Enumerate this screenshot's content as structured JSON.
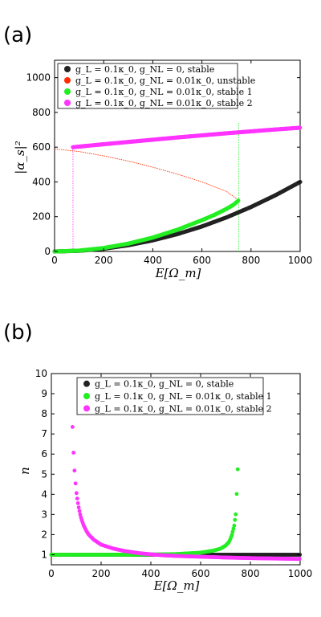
{
  "chart_data": [
    {
      "panel_label": "(a)",
      "type": "scatter",
      "xlabel": "E[Ω_m]",
      "ylabel": "|α_s|²",
      "xlim": [
        0,
        1000
      ],
      "ylim": [
        0,
        1100
      ],
      "xticks": [
        0,
        200,
        400,
        600,
        800,
        1000
      ],
      "yticks": [
        0,
        200,
        400,
        600,
        800,
        1000
      ],
      "legend_position": "top-left",
      "series": [
        {
          "name": "g_L = 0.1κ_0, g_NL = 0, stable",
          "color": "#222222",
          "style": "dots",
          "x": [
            0,
            100,
            200,
            300,
            400,
            500,
            600,
            700,
            800,
            900,
            1000
          ],
          "y": [
            0,
            4,
            16,
            36,
            64,
            100,
            144,
            196,
            256,
            324,
            400
          ]
        },
        {
          "name": "g_L = 0.1κ_0, g_NL = 0.01κ_0, unstable",
          "color": "#ff2a00",
          "style": "dots",
          "x": [
            0,
            100,
            200,
            300,
            400,
            500,
            600,
            700,
            740,
            750
          ],
          "y": [
            590,
            575,
            550,
            520,
            485,
            445,
            400,
            345,
            305,
            295
          ]
        },
        {
          "name": "g_L = 0.1κ_0, g_NL = 0.01κ_0, stable 1",
          "color": "#22ee22",
          "style": "dots",
          "x": [
            0,
            100,
            200,
            300,
            400,
            500,
            600,
            650,
            700,
            730,
            750
          ],
          "y": [
            0,
            5,
            20,
            45,
            80,
            125,
            180,
            210,
            245,
            270,
            295
          ]
        },
        {
          "name": "g_L = 0.1κ_0, g_NL = 0.01κ_0, stable 2",
          "color": "#ff33ff",
          "style": "dots",
          "x": [
            75,
            200,
            300,
            400,
            500,
            600,
            700,
            800,
            900,
            1000
          ],
          "y": [
            600,
            617,
            630,
            643,
            656,
            668,
            680,
            691,
            702,
            712
          ]
        }
      ],
      "vlines": [
        {
          "x": 75,
          "y0": 0,
          "y1": 600,
          "color": "#ff33ff"
        },
        {
          "x": 750,
          "y0": 0,
          "y1": 740,
          "color": "#22ee22"
        }
      ]
    },
    {
      "panel_label": "(b)",
      "type": "scatter",
      "xlabel": "E[Ω_m]",
      "ylabel": "n",
      "xlim": [
        0,
        1000
      ],
      "ylim": [
        0.5,
        10
      ],
      "xticks": [
        0,
        200,
        400,
        600,
        800,
        1000
      ],
      "yticks": [
        1,
        2,
        3,
        4,
        5,
        6,
        7,
        8,
        9,
        10
      ],
      "legend_position": "top-center",
      "series": [
        {
          "name": "g_L = 0.1κ_0, g_NL = 0, stable",
          "color": "#222222",
          "style": "dots",
          "x": [
            0,
            100,
            200,
            300,
            400,
            500,
            600,
            700,
            800,
            900,
            1000
          ],
          "y": [
            1,
            1,
            1,
            1,
            1,
            1,
            1,
            1,
            1,
            1,
            1
          ]
        },
        {
          "name": "g_L = 0.1κ_0, g_NL = 0.01κ_0, stable 1",
          "color": "#22ee22",
          "style": "dots",
          "x": [
            0,
            100,
            200,
            300,
            400,
            500,
            600,
            650,
            680,
            700,
            715,
            725,
            735,
            742,
            750
          ],
          "y": [
            1,
            1,
            1,
            1,
            1.01,
            1.03,
            1.1,
            1.2,
            1.3,
            1.45,
            1.65,
            1.95,
            2.45,
            3.1,
            5.55
          ]
        },
        {
          "name": "g_L = 0.1κ_0, g_NL = 0.01κ_0, stable 2",
          "color": "#ff33ff",
          "style": "dots",
          "x": [
            85,
            90,
            95,
            100,
            105,
            110,
            115,
            120,
            130,
            140,
            150,
            170,
            200,
            250,
            300,
            350,
            400,
            450,
            500,
            600,
            700,
            800,
            900,
            1000
          ],
          "y": [
            7.35,
            5.75,
            4.8,
            4.15,
            3.7,
            3.35,
            3.05,
            2.8,
            2.45,
            2.2,
            2.0,
            1.75,
            1.5,
            1.3,
            1.17,
            1.08,
            1.02,
            0.97,
            0.94,
            0.9,
            0.86,
            0.83,
            0.81,
            0.79
          ]
        }
      ]
    }
  ]
}
